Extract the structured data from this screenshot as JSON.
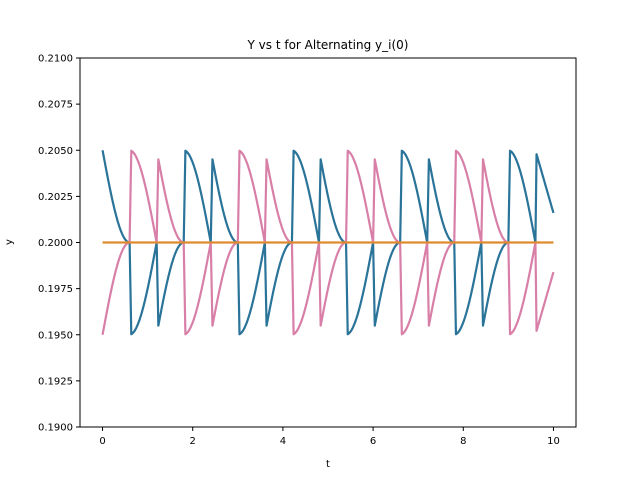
{
  "chart_data": {
    "type": "line",
    "title": "Y vs t for Alternating y_i(0)",
    "xlabel": "t",
    "ylabel": "y",
    "xlim": [
      -0.5,
      10.5
    ],
    "ylim": [
      0.19,
      0.21
    ],
    "x_ticks": [
      0,
      2,
      4,
      6,
      8,
      10
    ],
    "x_tick_labels": [
      "0",
      "2",
      "4",
      "6",
      "8",
      "10"
    ],
    "y_ticks": [
      0.19,
      0.1925,
      0.195,
      0.1975,
      0.2,
      0.2025,
      0.205,
      0.2075,
      0.21
    ],
    "y_tick_labels": [
      "0.1900",
      "0.1925",
      "0.1950",
      "0.1975",
      "0.2000",
      "0.2025",
      "0.2050",
      "0.2075",
      "0.2100"
    ],
    "grid": false,
    "legend": false,
    "x": [
      0,
      0.6,
      1.2,
      1.8,
      2.4,
      3.0,
      3.6,
      4.2,
      4.8,
      5.4,
      6.0,
      6.6,
      7.2,
      7.8,
      8.4,
      9.0,
      9.6,
      10.0
    ],
    "series": [
      {
        "color": "#2a7399",
        "values": [
          0.205,
          0.2,
          0.195,
          0.2,
          0.205,
          0.2,
          0.195,
          0.2,
          0.205,
          0.2,
          0.195,
          0.2,
          0.205,
          0.2,
          0.195,
          0.2,
          0.205,
          0.2016
        ]
      },
      {
        "color": "#d87fa8",
        "values": [
          0.195,
          0.2,
          0.205,
          0.2,
          0.195,
          0.2,
          0.205,
          0.2,
          0.195,
          0.2,
          0.205,
          0.2,
          0.195,
          0.2,
          0.205,
          0.2,
          0.195,
          0.1984
        ]
      },
      {
        "color": "#e08a2f",
        "values": [
          0.2,
          0.2,
          0.2,
          0.2,
          0.2,
          0.2,
          0.2,
          0.2,
          0.2,
          0.2,
          0.2,
          0.2,
          0.2,
          0.2,
          0.2,
          0.2,
          0.2,
          0.2
        ]
      }
    ]
  }
}
